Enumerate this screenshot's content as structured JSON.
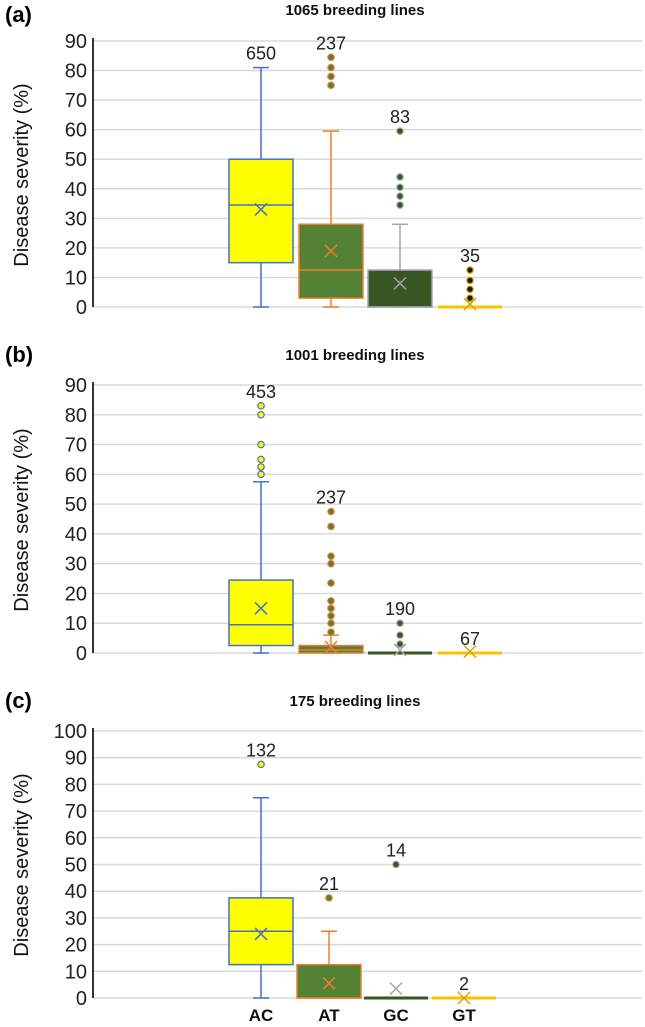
{
  "chart_data": [
    {
      "type": "box",
      "panel_label": "(a)",
      "title": "1065 breeding lines",
      "ylabel": "Disease severity (%)",
      "ylim": [
        0,
        90
      ],
      "yticks": [
        0,
        10,
        20,
        30,
        40,
        50,
        60,
        70,
        80,
        90
      ],
      "grid": true,
      "categories": [
        "AC",
        "AT",
        "GC",
        "GT"
      ],
      "series": [
        {
          "name": "AC",
          "n": "650",
          "min": 0,
          "q1": 15,
          "median": 34.5,
          "q3": 50,
          "max": 81,
          "mean": 33,
          "outliers": []
        },
        {
          "name": "AT",
          "n": "237",
          "min": 0,
          "q1": 3,
          "median": 12.5,
          "q3": 28,
          "max": 59.5,
          "mean": 19,
          "outliers": [
            75,
            78,
            81,
            84.5
          ]
        },
        {
          "name": "GC",
          "n": "83",
          "min": 0,
          "q1": 0,
          "median": 0,
          "q3": 12.5,
          "max": 28,
          "mean": 8,
          "outliers": [
            34.5,
            37.5,
            40.5,
            44,
            59.5
          ]
        },
        {
          "name": "GT",
          "n": "35",
          "min": 0,
          "q1": 0,
          "median": 0,
          "q3": 0,
          "max": 0,
          "mean": 1,
          "outliers": [
            3,
            6,
            9,
            12.5
          ]
        }
      ]
    },
    {
      "type": "box",
      "panel_label": "(b)",
      "title": "1001 breeding lines",
      "ylabel": "Disease severity (%)",
      "ylim": [
        0,
        90
      ],
      "yticks": [
        0,
        10,
        20,
        30,
        40,
        50,
        60,
        70,
        80,
        90
      ],
      "grid": true,
      "categories": [
        "AC",
        "AT",
        "GC",
        "GT"
      ],
      "series": [
        {
          "name": "AC",
          "n": "453",
          "min": 0,
          "q1": 2.5,
          "median": 9.5,
          "q3": 24.5,
          "max": 57.5,
          "mean": 15,
          "outliers": [
            60,
            62.5,
            65,
            70,
            80,
            83
          ]
        },
        {
          "name": "AT",
          "n": "237",
          "min": 0,
          "q1": 0,
          "median": 1,
          "q3": 2.5,
          "max": 6,
          "mean": 2,
          "outliers": [
            7,
            10,
            12.5,
            15,
            17.5,
            23.5,
            30,
            32.5,
            42.5,
            47.5
          ]
        },
        {
          "name": "GC",
          "n": "190",
          "min": 0,
          "q1": 0,
          "median": 0,
          "q3": 0,
          "max": 0,
          "mean": 1,
          "outliers": [
            3,
            6,
            10
          ]
        },
        {
          "name": "GT",
          "n": "67",
          "min": 0,
          "q1": 0,
          "median": 0,
          "q3": 0,
          "max": 0,
          "mean": 0.5,
          "outliers": []
        }
      ]
    },
    {
      "type": "box",
      "panel_label": "(c)",
      "title": "175 breeding lines",
      "ylabel": "Disease severity (%)",
      "ylim": [
        0,
        100
      ],
      "yticks": [
        0,
        10,
        20,
        30,
        40,
        50,
        60,
        70,
        80,
        90,
        100
      ],
      "grid": true,
      "categories": [
        "AC",
        "AT",
        "GC",
        "GT"
      ],
      "show_category_labels": true,
      "series": [
        {
          "name": "AC",
          "n": "132",
          "min": 0,
          "q1": 12.5,
          "median": 25,
          "q3": 37.5,
          "max": 75,
          "mean": 24,
          "outliers": [
            87.5
          ]
        },
        {
          "name": "AT",
          "n": "21",
          "min": 0,
          "q1": 0,
          "median": 0,
          "q3": 12.5,
          "max": 25,
          "mean": 5.5,
          "outliers": [
            37.5
          ]
        },
        {
          "name": "GC",
          "n": "14",
          "min": 0,
          "q1": 0,
          "median": 0,
          "q3": 0,
          "max": 0,
          "mean": 3.5,
          "outliers": [
            50
          ]
        },
        {
          "name": "GT",
          "n": "2",
          "min": 0,
          "q1": 0,
          "median": 0,
          "q3": 0,
          "max": 0,
          "mean": 0,
          "outliers": []
        }
      ]
    }
  ],
  "colors": {
    "AC": {
      "fill": "#ffff00",
      "stroke": "#4472c4",
      "point": "#ffff00"
    },
    "AT": {
      "fill": "#548235",
      "stroke": "#ed7d31",
      "point": "#548235"
    },
    "GC": {
      "fill": "#375623",
      "stroke": "#a5a5a5",
      "point": "#375623"
    },
    "GT": {
      "fill": "#ffc000",
      "stroke": "#d4a400",
      "point": "#1a1a1a"
    },
    "grid": "#d9d9d9",
    "axis": "#333333"
  }
}
